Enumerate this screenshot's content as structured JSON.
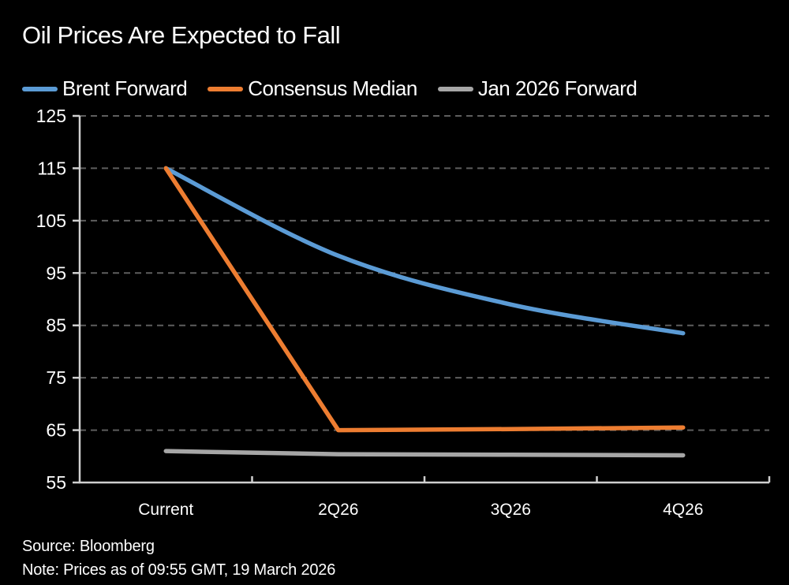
{
  "title": "Oil Prices Are Expected to Fall",
  "footer": {
    "source": "Source: Bloomberg",
    "note": "Note: Prices as of 09:55 GMT, 19 March 2026"
  },
  "colors": {
    "background": "#000000",
    "text": "#ffffff",
    "gridline": "#5e5e5e",
    "axis": "#cfcfcf",
    "brent": "#5b9bd5",
    "consensus": "#ed7d31",
    "jan2026": "#a6a6a6"
  },
  "chart_data": {
    "type": "line",
    "categories": [
      "Current",
      "2Q26",
      "3Q26",
      "4Q26"
    ],
    "series": [
      {
        "name": "Brent Forward",
        "color": "#5b9bd5",
        "smooth": true,
        "values": [
          115,
          98.3,
          89,
          83.5
        ]
      },
      {
        "name": "Consensus Median",
        "color": "#ed7d31",
        "smooth": false,
        "values": [
          115,
          65,
          65.2,
          65.5
        ]
      },
      {
        "name": "Jan 2026 Forward",
        "color": "#a6a6a6",
        "smooth": false,
        "values": [
          61,
          60.4,
          60.3,
          60.2
        ]
      }
    ],
    "ylim": [
      55,
      125
    ],
    "yticks": [
      55,
      65,
      75,
      85,
      95,
      105,
      115,
      125
    ],
    "xlabel": "",
    "ylabel": "",
    "grid": "horizontal-dashed",
    "legend_position": "top-left",
    "title": "Oil Prices Are Expected to Fall"
  }
}
